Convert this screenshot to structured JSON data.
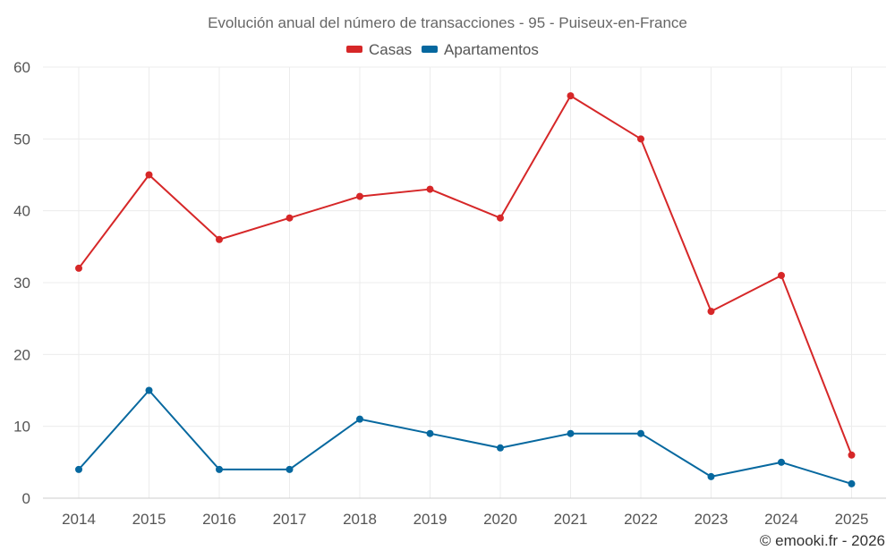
{
  "chart_data": {
    "type": "line",
    "title": "Evolución anual del número de transacciones - 95 - Puiseux-en-France",
    "categories": [
      "2014",
      "2015",
      "2016",
      "2017",
      "2018",
      "2019",
      "2020",
      "2021",
      "2022",
      "2023",
      "2024",
      "2025"
    ],
    "series": [
      {
        "name": "Casas",
        "color": "#d62728",
        "values": [
          32,
          45,
          36,
          39,
          42,
          43,
          39,
          56,
          50,
          26,
          31,
          6
        ]
      },
      {
        "name": "Apartamentos",
        "color": "#06689f",
        "values": [
          4,
          15,
          4,
          4,
          11,
          9,
          7,
          9,
          9,
          3,
          5,
          2
        ]
      }
    ],
    "xlabel": "",
    "ylabel": "",
    "ylim": [
      0,
      60
    ],
    "yticks": [
      0,
      10,
      20,
      30,
      40,
      50,
      60
    ],
    "grid": true,
    "legend_position": "top-center"
  },
  "credit": "© emooki.fr - 2026"
}
